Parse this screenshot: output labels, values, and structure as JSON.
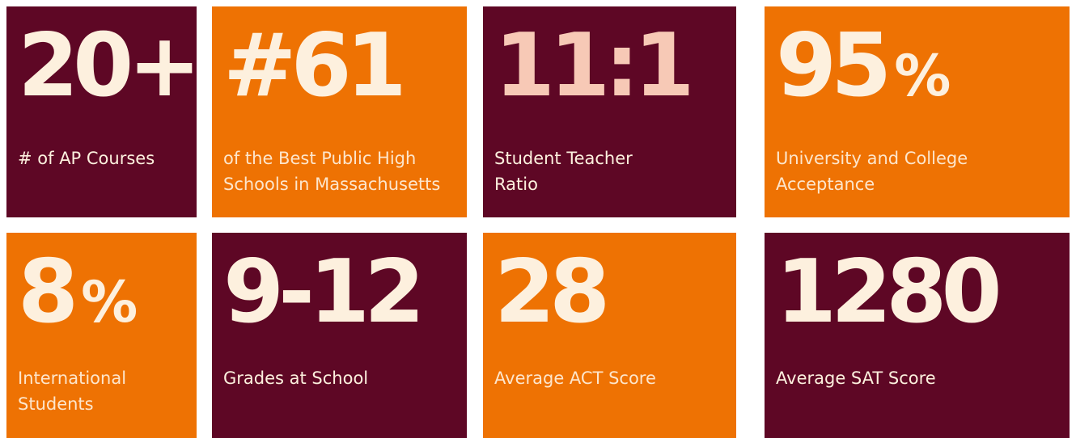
{
  "tiles": [
    {
      "number": "20+",
      "label": "# of AP Courses"
    },
    {
      "number": "#61",
      "label": "of the Best Public High Schools in Massachusetts"
    },
    {
      "number": "11:1",
      "label": "Student Teacher Ratio"
    },
    {
      "number": "95",
      "suffix": "%",
      "label": "University and College Acceptance"
    },
    {
      "number": "8",
      "suffix": "%",
      "label": "International Students"
    },
    {
      "number": "9-12",
      "label": "Grades at School"
    },
    {
      "number": "28",
      "label": "Average ACT Score"
    },
    {
      "number": "1280",
      "label": "Average SAT Score"
    }
  ]
}
